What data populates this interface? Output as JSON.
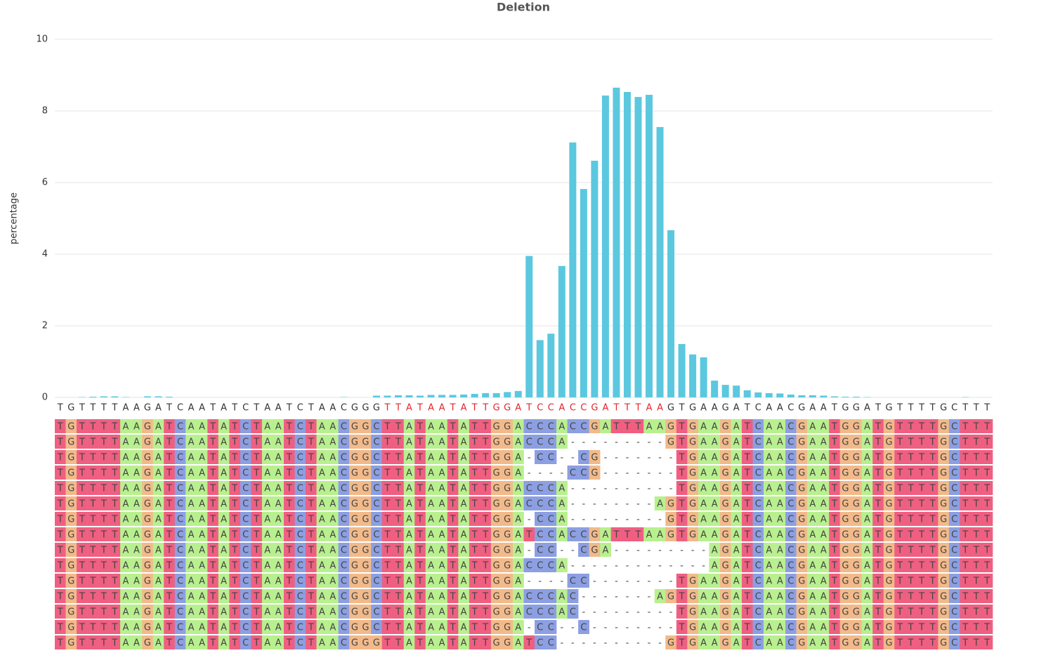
{
  "chart_data": {
    "type": "bar",
    "title": "Deletion",
    "y_label": "percentage",
    "categories": [
      "T",
      "G",
      "T",
      "T",
      "T",
      "T",
      "A",
      "A",
      "G",
      "A",
      "T",
      "C",
      "A",
      "A",
      "T",
      "A",
      "T",
      "C",
      "T",
      "A",
      "A",
      "T",
      "C",
      "T",
      "A",
      "A",
      "C",
      "G",
      "G",
      "G",
      "T",
      "T",
      "A",
      "T",
      "A",
      "A",
      "T",
      "A",
      "T",
      "T",
      "G",
      "G",
      "A",
      "T",
      "C",
      "C",
      "A",
      "C",
      "C",
      "G",
      "A",
      "T",
      "T",
      "T",
      "A",
      "A",
      "G",
      "T",
      "G",
      "A",
      "A",
      "G",
      "A",
      "T",
      "C",
      "A",
      "A",
      "C",
      "G",
      "A",
      "A",
      "T",
      "G",
      "G",
      "A",
      "T",
      "G",
      "T",
      "T",
      "T",
      "T",
      "G",
      "C",
      "T",
      "T",
      "T"
    ],
    "values": [
      0,
      0,
      0.01,
      0.02,
      0.03,
      0.03,
      0.01,
      0,
      0.03,
      0.03,
      0.02,
      0,
      0,
      0,
      0,
      0,
      0,
      0,
      0,
      0,
      0,
      0,
      0,
      0,
      0,
      0,
      0.01,
      0,
      0,
      0.05,
      0.05,
      0.06,
      0.06,
      0.05,
      0.07,
      0.07,
      0.07,
      0.08,
      0.1,
      0.12,
      0.12,
      0.15,
      0.18,
      3.95,
      1.6,
      1.78,
      3.67,
      7.12,
      5.82,
      6.61,
      8.43,
      8.65,
      8.53,
      8.39,
      8.45,
      7.55,
      4.67,
      1.49,
      1.2,
      1.12,
      0.47,
      0.35,
      0.33,
      0.2,
      0.14,
      0.12,
      0.11,
      0.08,
      0.06,
      0.06,
      0.05,
      0.03,
      0.02,
      0.02,
      0.01,
      0,
      0,
      0,
      0,
      0,
      0,
      0,
      0,
      0.01,
      0,
      0
    ],
    "color": "#5bc8df",
    "highlight": {
      "start": 30,
      "end": 55,
      "color": "#e3262b"
    },
    "ylim": [
      0,
      10
    ],
    "yticks": [
      0,
      2,
      4,
      6,
      8,
      10
    ],
    "grid": true
  },
  "alignment": {
    "colors": {
      "A": "#b9f08f",
      "C": "#8c9fe2",
      "G": "#f2ba8a",
      "T": "#ef5f81"
    },
    "rows": [
      "TGTTTTAAGATCAATATCTAATCTAACGGCTTATAATATTGGACCCACCGATTTAAGTGAAGATCAACGAATGGATGTTTTGCTTT",
      "TGTTTTAAGATCAATATCTAATCTAACGGCTTATAATATTGGACCCA---------GTGAAGATCAACGAATGGATGTTTTGCTTT",
      "TGTTTTAAGATCAATATCTAATCTAACGGCTTATAATATTGGA-CC--CG-------TGAAGATCAACGAATGGATGTTTTGCTTT",
      "TGTTTTAAGATCAATATCTAATCTAACGGCTTATAATATTGGA----CCG-------TGAAGATCAACGAATGGATGTTTTGCTTT",
      "TGTTTTAAGATCAATATCTAATCTAACGGCTTATAATATTGGACCCA----------TGAAGATCAACGAATGGATGTTTTGCTTT",
      "TGTTTTAAGATCAATATCTAATCTAACGGCTTATAATATTGGACCCA--------AGTGAAGATCAACGAATGGATGTTTTGCTTT",
      "TGTTTTAAGATCAATATCTAATCTAACGGCTTATAATATTGGA-CCA---------GTGAAGATCAACGAATGGATGTTTTGCTTT",
      "TGTTTTAAGATCAATATCTAATCTAACGGCTTATAATATTGGATCCACCGATTTAAGTGAAGATCAACGAATGGATGTTTTGCTTT",
      "TGTTTTAAGATCAATATCTAATCTAACGGCTTATAATATTGGA-CC--CGA---------AGATCAACGAATGGATGTTTTGCTTT",
      "TGTTTTAAGATCAATATCTAATCTAACGGCTTATAATATTGGACCCA-------------AGATCAACGAATGGATGTTTTGCTTT",
      "TGTTTTAAGATCAATATCTAATCTAACGGCTTATAATATTGGA----CC--------TGAAGATCAACGAATGGATGTTTTGCTTT",
      "TGTTTTAAGATCAATATCTAATCTAACGGCTTATAATATTGGACCCAC-------AGTGAAGATCAACGAATGGATGTTTTGCTTT",
      "TGTTTTAAGATCAATATCTAATCTAACGGCTTATAATATTGGACCCAC---------TGAAGATCAACGAATGGATGTTTTGCTTT",
      "TGTTTTAAGATCAATATCTAATCTAACGGCTTATAATATTGGA-CC--C--------TGAAGATCAACGAATGGATGTTTTGCTTT",
      "TGTTTTAAGATCAATATCTAATCTAACGGGTTATAATATTGGATCC----------GTGAAGATCAACGAATGGATGTTTTGCTTT"
    ]
  }
}
